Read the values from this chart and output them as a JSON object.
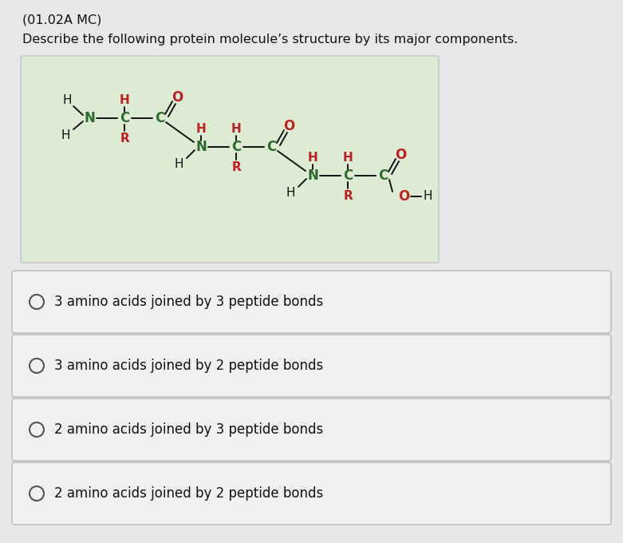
{
  "title": "(01.02A MC)",
  "question": "Describe the following protein molecule’s structure by its major components.",
  "choices": [
    "3 amino acids joined by 3 peptide bonds",
    "3 amino acids joined by 2 peptide bonds",
    "2 amino acids joined by 3 peptide bonds",
    "2 amino acids joined by 2 peptide bonds"
  ],
  "bg_color": "#e8e8e8",
  "diagram_bg": "#ddebd4",
  "choice_bg": "#f0f0f0",
  "choice_border": "#aaaaaa",
  "text_color": "#111111",
  "green_color": "#2d6a2d",
  "red_color": "#bb2020",
  "black_color": "#111111",
  "title_fontsize": 11.5,
  "question_fontsize": 11.5,
  "choice_fontsize": 12,
  "mol_fontsize": 11
}
